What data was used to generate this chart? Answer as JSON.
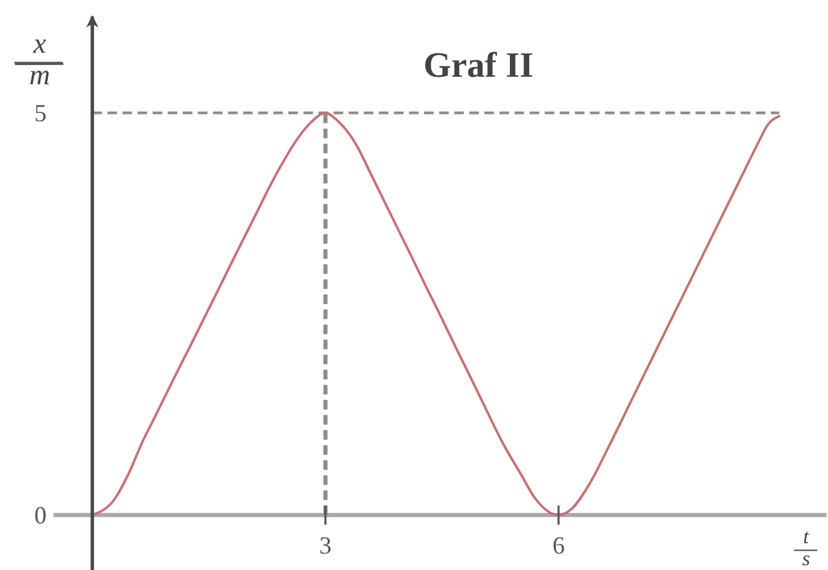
{
  "chart_data": {
    "type": "line",
    "title": "Graf II",
    "xlabel": "t/s",
    "ylabel": "x/m",
    "x": [
      0,
      0.28,
      0.46,
      0.64,
      0.81,
      1.05,
      1.28,
      1.46,
      1.64,
      1.87,
      2.11,
      2.28,
      2.46,
      2.64,
      2.81,
      3,
      3.16,
      3.4,
      3.58,
      3.87,
      4.11,
      4.28,
      4.46,
      4.69,
      4.93,
      5.11,
      5.28,
      5.52,
      5.69,
      6,
      6.16,
      6.4,
      6.64,
      6.93,
      7.22,
      7.52,
      7.81,
      8.11,
      8.34,
      8.58,
      8.69,
      8.84
    ],
    "series": [
      {
        "color": "#c87072",
        "values": [
          0,
          0.19,
          0.5,
          0.9,
          1.23,
          1.7,
          2.14,
          2.49,
          2.84,
          3.29,
          3.75,
          4.08,
          4.4,
          4.68,
          4.88,
          5,
          4.9,
          4.6,
          4.25,
          3.68,
          3.21,
          2.87,
          2.52,
          2.06,
          1.59,
          1.23,
          0.9,
          0.5,
          0.22,
          0,
          0.07,
          0.39,
          0.84,
          1.41,
          1.98,
          2.57,
          3.14,
          3.73,
          4.18,
          4.65,
          4.85,
          4.96
        ]
      }
    ],
    "xlim": [
      -0.5,
      9.45
    ],
    "ylim": [
      -0.7,
      6.2
    ],
    "xticks": [
      3,
      6
    ],
    "yticks": [
      0,
      5
    ],
    "ref_lines": [
      {
        "axis": "y",
        "value": 5,
        "line_style": "dashed",
        "color": "#8c8c8c"
      },
      {
        "axis": "x",
        "value": 3,
        "line_style": "dashed",
        "color": "#8c8c8c"
      }
    ],
    "line_style": "solid"
  }
}
